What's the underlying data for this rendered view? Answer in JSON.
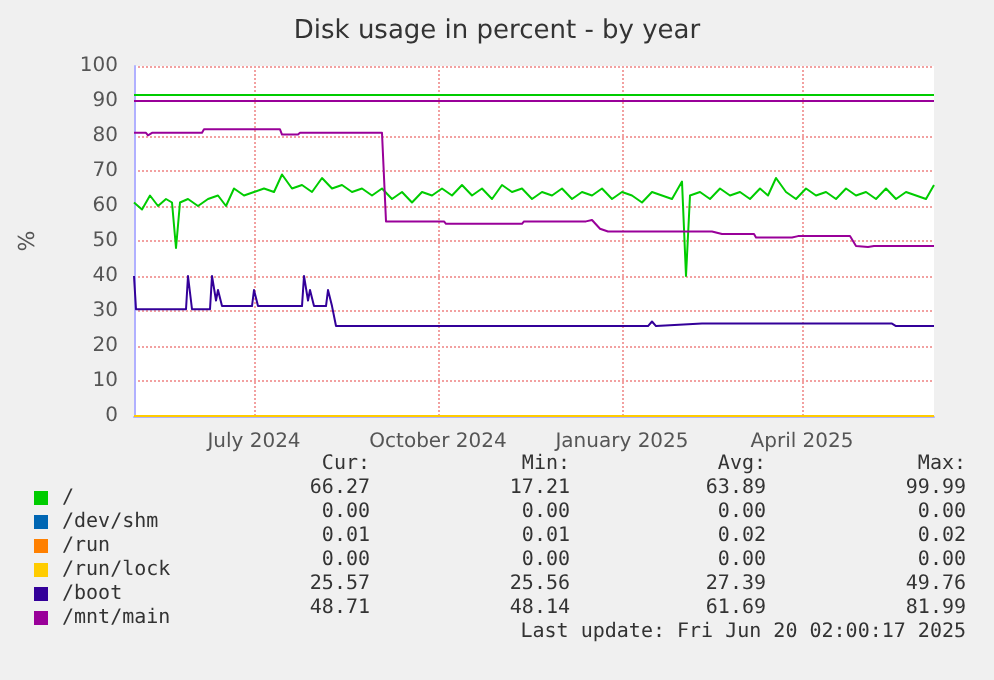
{
  "chart_data": {
    "type": "line",
    "title": "Disk usage in percent - by year",
    "ylabel": "%",
    "xlim": [
      "2024-05-02",
      "2025-06-06"
    ],
    "xticks": [
      {
        "value": "2024-07-01",
        "label": "July 2024"
      },
      {
        "value": "2024-10-01",
        "label": "October 2024"
      },
      {
        "value": "2025-01-01",
        "label": "January 2025"
      },
      {
        "value": "2025-04-01",
        "label": "April 2025"
      }
    ],
    "ylim": [
      0,
      100
    ],
    "yticks": [
      0,
      10,
      20,
      30,
      40,
      50,
      60,
      70,
      80,
      90,
      100
    ],
    "grid": true,
    "legend": "bottom left",
    "marker": "none",
    "line_style": "solid",
    "series": [
      {
        "name": "/",
        "color": "#00cc00",
        "x": [
          "2024-05-02",
          "2024-05-06",
          "2024-05-10",
          "2024-05-14",
          "2024-05-18",
          "2024-05-21",
          "2024-05-23",
          "2024-05-25",
          "2024-05-29",
          "2024-06-03",
          "2024-06-08",
          "2024-06-13",
          "2024-06-17",
          "2024-06-21",
          "2024-06-26",
          "2024-07-01",
          "2024-07-06",
          "2024-07-11",
          "2024-07-15",
          "2024-07-20",
          "2024-07-25",
          "2024-07-30",
          "2024-08-04",
          "2024-08-09",
          "2024-08-14",
          "2024-08-19",
          "2024-08-24",
          "2024-08-29",
          "2024-09-03",
          "2024-09-08",
          "2024-09-13",
          "2024-09-18",
          "2024-09-23",
          "2024-09-28",
          "2024-10-03",
          "2024-10-08",
          "2024-10-13",
          "2024-10-18",
          "2024-10-23",
          "2024-10-28",
          "2024-11-02",
          "2024-11-07",
          "2024-11-12",
          "2024-11-17",
          "2024-11-22",
          "2024-11-27",
          "2024-12-02",
          "2024-12-07",
          "2024-12-12",
          "2024-12-17",
          "2024-12-22",
          "2024-12-27",
          "2025-01-01",
          "2025-01-06",
          "2025-01-11",
          "2025-01-16",
          "2025-01-21",
          "2025-01-26",
          "2025-01-31",
          "2025-02-02",
          "2025-02-04",
          "2025-02-09",
          "2025-02-14",
          "2025-02-19",
          "2025-02-24",
          "2025-03-01",
          "2025-03-06",
          "2025-03-11",
          "2025-03-15",
          "2025-03-19",
          "2025-03-24",
          "2025-03-29",
          "2025-04-03",
          "2025-04-08",
          "2025-04-13",
          "2025-04-18",
          "2025-04-23",
          "2025-04-28",
          "2025-05-03",
          "2025-05-08",
          "2025-05-13",
          "2025-05-18",
          "2025-05-23",
          "2025-05-28",
          "2025-06-02",
          "2025-06-06"
        ],
        "values": [
          61,
          59,
          63,
          60,
          62,
          61,
          48,
          61,
          62,
          60,
          62,
          63,
          60,
          65,
          63,
          64,
          65,
          64,
          69,
          65,
          66,
          64,
          68,
          65,
          66,
          64,
          65,
          63,
          65,
          62,
          64,
          61,
          64,
          63,
          65,
          63,
          66,
          63,
          65,
          62,
          66,
          64,
          65,
          62,
          64,
          63,
          65,
          62,
          64,
          63,
          65,
          62,
          64,
          63,
          61,
          64,
          63,
          62,
          67,
          40,
          63,
          64,
          62,
          65,
          63,
          64,
          62,
          65,
          63,
          68,
          64,
          62,
          65,
          63,
          64,
          62,
          65,
          63,
          64,
          62,
          65,
          62,
          64,
          63,
          62,
          66
        ]
      },
      {
        "name": "/dev/shm",
        "color": "#0066b3",
        "values": [
          null
        ]
      },
      {
        "name": "/run",
        "color": "#ff8000",
        "values": [
          null
        ]
      },
      {
        "name": "/run/lock",
        "color": "#ffcc00",
        "x": [
          "2024-05-02",
          "2025-06-06"
        ],
        "values": [
          0,
          0
        ]
      },
      {
        "name": "/boot",
        "color": "#330099",
        "x": [
          "2024-05-02",
          "2024-05-03",
          "2024-05-28",
          "2024-05-29",
          "2024-05-31",
          "2024-06-09",
          "2024-06-10",
          "2024-06-12",
          "2024-06-13",
          "2024-06-15",
          "2024-06-30",
          "2024-07-01",
          "2024-07-03",
          "2024-07-25",
          "2024-07-26",
          "2024-07-28",
          "2024-07-29",
          "2024-07-31",
          "2024-08-06",
          "2024-08-07",
          "2024-08-09",
          "2024-08-11",
          "2025-01-14",
          "2025-01-16",
          "2025-01-18",
          "2025-02-10",
          "2025-05-16",
          "2025-05-18",
          "2025-06-06"
        ],
        "values": [
          40,
          30.5,
          30.5,
          40,
          30.5,
          30.5,
          40,
          33,
          36,
          31.4,
          31.4,
          36,
          31.4,
          31.4,
          40,
          33,
          36,
          31.4,
          31.4,
          36,
          31.4,
          25.7,
          25.7,
          27,
          25.7,
          26.4,
          26.4,
          25.7,
          25.7
        ]
      },
      {
        "name": "/mnt/main",
        "color": "#990099",
        "x": [
          "2024-05-02",
          "2024-05-08",
          "2024-05-09",
          "2024-05-11",
          "2024-06-05",
          "2024-06-06",
          "2024-07-14",
          "2024-07-15",
          "2024-07-23",
          "2024-07-24",
          "2024-09-03",
          "2024-09-05",
          "2024-10-04",
          "2024-10-05",
          "2024-11-12",
          "2024-11-13",
          "2024-12-14",
          "2024-12-17",
          "2024-12-21",
          "2024-12-25",
          "2025-02-15",
          "2025-02-20",
          "2025-03-08",
          "2025-03-09",
          "2025-03-27",
          "2025-03-30",
          "2025-04-25",
          "2025-04-28",
          "2025-05-04",
          "2025-05-07",
          "2025-06-06"
        ],
        "values": [
          80.9,
          80.9,
          80.2,
          80.9,
          80.9,
          81.9,
          81.9,
          80.4,
          80.4,
          80.9,
          80.9,
          55.6,
          55.6,
          54.9,
          54.9,
          55.6,
          55.6,
          56,
          53.5,
          52.7,
          52.7,
          52,
          52,
          51,
          51,
          51.4,
          51.4,
          48.6,
          48.3,
          48.6,
          48.6
        ]
      }
    ],
    "ref_lines": [
      {
        "axis": "y",
        "value": 92,
        "color": "#00cc00"
      },
      {
        "axis": "y",
        "value": 90,
        "color": "#990099"
      }
    ],
    "annotations": [
      "Cur:",
      "Min:",
      "Avg:",
      "Max:",
      "66.27",
      "17.21",
      "63.89",
      "99.99",
      "0.00",
      "0.00",
      "0.00",
      "0.00",
      "0.01",
      "0.01",
      "0.02",
      "0.02",
      "0.00",
      "0.00",
      "0.00",
      "0.00",
      "25.57",
      "25.56",
      "27.39",
      "49.76",
      "48.71",
      "48.14",
      "61.69",
      "81.99",
      "Last update: Fri Jun 20 02:00:17 2025"
    ]
  }
}
